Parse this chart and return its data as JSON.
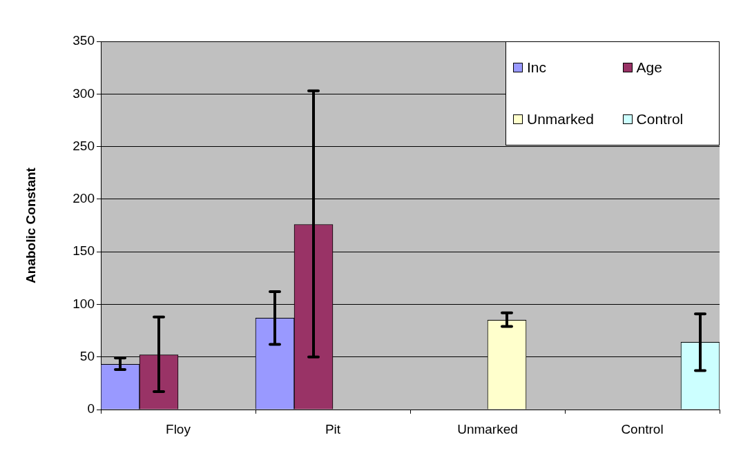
{
  "chart_data": {
    "type": "bar",
    "ylabel": "Anabolic Constant",
    "categories": [
      "Floy",
      "Pit",
      "Unmarked",
      "Control"
    ],
    "series": [
      {
        "name": "Inc",
        "color": "#9999ff",
        "values": [
          43,
          87,
          null,
          null
        ],
        "errors": [
          [
            38,
            49
          ],
          [
            62,
            112
          ],
          null,
          null
        ]
      },
      {
        "name": "Age",
        "color": "#993366",
        "values": [
          52,
          176,
          null,
          null
        ],
        "errors": [
          [
            17,
            88
          ],
          [
            50,
            303
          ],
          null,
          null
        ]
      },
      {
        "name": "Unmarked",
        "color": "#ffffcc",
        "values": [
          null,
          null,
          85,
          null
        ],
        "errors": [
          null,
          null,
          [
            79,
            92
          ],
          null
        ]
      },
      {
        "name": "Control",
        "color": "#ccffff",
        "values": [
          null,
          null,
          null,
          64
        ],
        "errors": [
          null,
          null,
          null,
          [
            37,
            91
          ]
        ]
      }
    ],
    "ylim": [
      0,
      350
    ],
    "yticks": [
      0,
      50,
      100,
      150,
      200,
      250,
      300,
      350
    ],
    "grid": "y",
    "legend": "top right"
  }
}
